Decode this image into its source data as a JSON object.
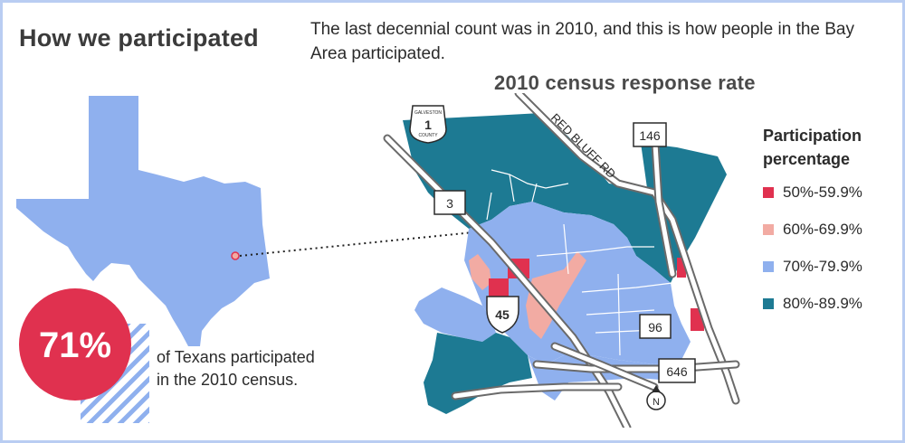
{
  "header": {
    "title": "How we participated",
    "intro": "The last decennial count was in 2010, and this is how people in the Bay Area participated."
  },
  "map": {
    "title": "2010 census response rate",
    "roads": {
      "red_bluff": "RED BLUFF RD",
      "sh146": "146",
      "fm3": "3",
      "i45": "45",
      "sh96": "96",
      "fm646": "646",
      "county_shield": "1",
      "county_shield_top": "GALVESTON",
      "county_shield_bottom": "COUNTY",
      "north": "N"
    }
  },
  "stat": {
    "value": "71%",
    "text": "of Texans participated in the 2010 census."
  },
  "legend": {
    "title": "Participation percentage",
    "items": [
      {
        "label": "50%-59.9%",
        "color": "#e0314f"
      },
      {
        "label": "60%-69.9%",
        "color": "#f2aba3"
      },
      {
        "label": "70%-79.9%",
        "color": "#8fb0ee"
      },
      {
        "label": "80%-89.9%",
        "color": "#1d7a93"
      }
    ]
  },
  "colors": {
    "tract_50": "#e0314f",
    "tract_60": "#f2aba3",
    "tract_70": "#8fb0ee",
    "tract_80": "#1d7a93",
    "texas": "#8fb0ee",
    "frame": "#b9cdf2"
  }
}
